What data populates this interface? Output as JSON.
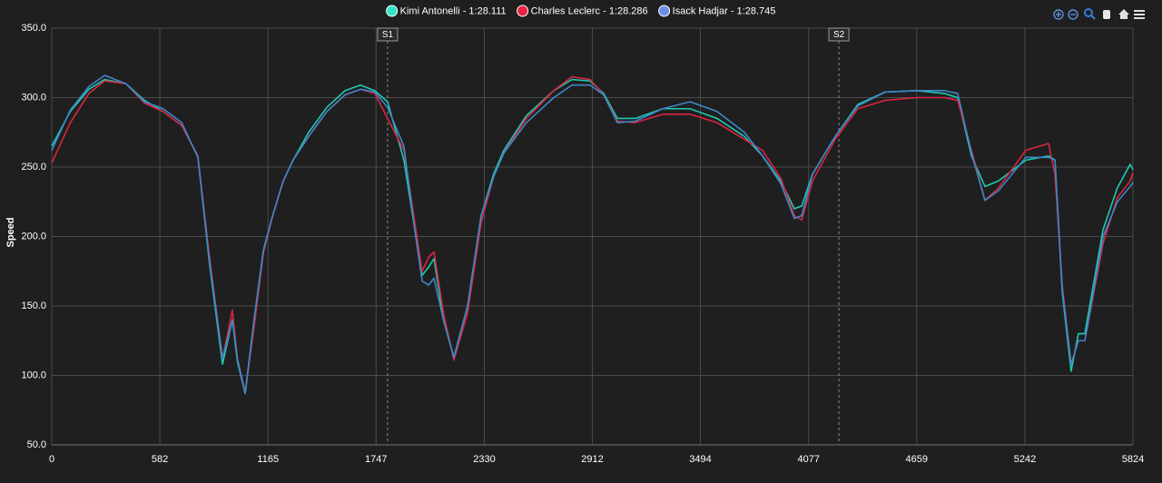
{
  "chart_data": {
    "type": "line",
    "y_label": "Speed",
    "x": [
      0,
      100,
      200,
      285,
      400,
      500,
      600,
      700,
      787,
      850,
      920,
      973,
      1000,
      1042,
      1090,
      1140,
      1190,
      1247,
      1300,
      1384,
      1482,
      1580,
      1663,
      1740,
      1809,
      1897,
      1950,
      1995,
      2030,
      2059,
      2110,
      2166,
      2240,
      2313,
      2380,
      2435,
      2557,
      2704,
      2802,
      2900,
      2973,
      3047,
      3144,
      3291,
      3438,
      3584,
      3731,
      3829,
      3927,
      4000,
      4040,
      4098,
      4220,
      4342,
      4489,
      4660,
      4807,
      4880,
      4954,
      5027,
      5100,
      5247,
      5369,
      5404,
      5443,
      5491,
      5530,
      5565,
      5663,
      5740,
      5809,
      5824
    ],
    "series": [
      {
        "name": "Kimi Antonelli - 1:28.111",
        "color": "#1fc9b0",
        "legend_color": "#2ee6c6",
        "values": [
          265,
          290,
          306,
          313,
          310,
          298,
          290,
          280,
          258,
          180,
          108,
          140,
          110,
          87,
          140,
          190,
          215,
          240,
          255,
          275,
          293,
          305,
          309,
          305,
          297,
          255,
          210,
          172,
          178,
          184,
          140,
          113,
          150,
          215,
          245,
          262,
          287,
          305,
          313,
          312,
          303,
          285,
          285,
          292,
          292,
          285,
          272,
          258,
          240,
          220,
          222,
          245,
          272,
          295,
          304,
          305,
          303,
          300,
          258,
          236,
          240,
          255,
          258,
          255,
          160,
          103,
          130,
          130,
          205,
          235,
          252,
          248
        ]
      },
      {
        "name": "Charles Leclerc - 1:28.286",
        "color": "#d9263f",
        "legend_color": "#e8253f",
        "values": [
          253,
          282,
          303,
          312,
          310,
          296,
          290,
          280,
          258,
          185,
          112,
          147,
          112,
          88,
          135,
          188,
          215,
          240,
          255,
          272,
          290,
          302,
          306,
          303,
          285,
          262,
          215,
          175,
          185,
          189,
          145,
          111,
          145,
          210,
          243,
          260,
          285,
          305,
          315,
          313,
          302,
          283,
          282,
          288,
          288,
          282,
          270,
          262,
          242,
          215,
          212,
          240,
          270,
          292,
          298,
          300,
          300,
          298,
          262,
          226,
          235,
          262,
          267,
          245,
          165,
          108,
          125,
          125,
          195,
          228,
          240,
          246
        ]
      },
      {
        "name": "Isack Hadjar - 1:28.745",
        "color": "#3f86c9",
        "legend_color": "#6b8ee8",
        "values": [
          262,
          291,
          308,
          316,
          310,
          297,
          292,
          282,
          257,
          182,
          112,
          140,
          112,
          87,
          140,
          190,
          215,
          240,
          255,
          272,
          290,
          302,
          306,
          304,
          293,
          265,
          210,
          168,
          165,
          170,
          140,
          113,
          150,
          215,
          243,
          260,
          282,
          300,
          309,
          309,
          302,
          282,
          283,
          292,
          297,
          290,
          275,
          258,
          238,
          213,
          215,
          245,
          272,
          294,
          304,
          305,
          305,
          303,
          260,
          226,
          233,
          257,
          257,
          255,
          162,
          108,
          125,
          125,
          200,
          225,
          236,
          239
        ]
      }
    ],
    "annotations": [
      {
        "label": "S1",
        "x": 1809
      },
      {
        "label": "S2",
        "x": 4240
      }
    ],
    "xlim": [
      0,
      5824
    ],
    "xticks": [
      0,
      582,
      1165,
      1747,
      2330,
      2912,
      3494,
      4077,
      4659,
      5242,
      5824
    ],
    "ylim": [
      50,
      350
    ],
    "yticks": [
      {
        "value": 50,
        "label": "50.0"
      },
      {
        "value": 100,
        "label": "100.0"
      },
      {
        "value": 150,
        "label": "150.0"
      },
      {
        "value": 200,
        "label": "200.0"
      },
      {
        "value": 250,
        "label": "250.0"
      },
      {
        "value": 300,
        "label": "300.0"
      },
      {
        "value": 350,
        "label": "350.0"
      }
    ],
    "grid": true
  }
}
